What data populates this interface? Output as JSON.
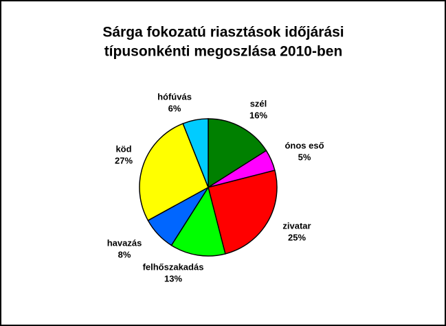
{
  "chart_data": {
    "type": "pie",
    "title": [
      "Sárga fokozatú riasztások időjárási",
      "típusonkénti megoszlása  2010-ben"
    ],
    "categories": [
      "szél",
      "ónos eső",
      "zivatar",
      "felhőszakadás",
      "havazás",
      "köd",
      "hófúvás"
    ],
    "values": [
      16,
      5,
      25,
      13,
      8,
      27,
      6
    ],
    "value_labels": [
      "16%",
      "5%",
      "25%",
      "13%",
      "8%",
      "27%",
      "6%"
    ],
    "colors": [
      "#008000",
      "#ff00ff",
      "#ff0000",
      "#00ff00",
      "#0066ff",
      "#ffff00",
      "#00ccff"
    ]
  }
}
